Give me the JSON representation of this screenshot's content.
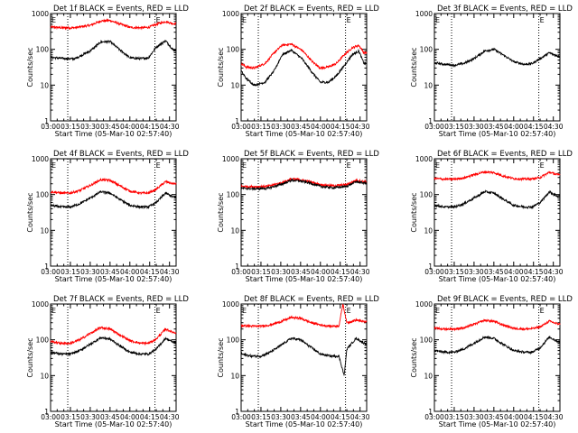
{
  "chart_data": {
    "type": "line",
    "xlabel": "Start Time (05-Mar-10 02:57:40)",
    "ylabel": "Counts/sec",
    "x_tick_labels": [
      "03:00",
      "03:15",
      "03:30",
      "03:45",
      "04:00",
      "04:15",
      "04:30"
    ],
    "x_ticks_min": [
      0,
      15,
      30,
      45,
      60,
      75,
      90
    ],
    "xlim_min": [
      0,
      95
    ],
    "y_tick_labels": [
      "1",
      "10",
      "100",
      "1000"
    ],
    "y_ticks": [
      1,
      10,
      100,
      1000
    ],
    "ylim": [
      1,
      1000
    ],
    "yscale": "log",
    "vlines_min": [
      13,
      79
    ],
    "marker_text": "E",
    "marker_positions_min": [
      0,
      79
    ],
    "series_colors": {
      "events": "#000000",
      "lld": "#ff0000"
    },
    "panels": [
      {
        "title": "Det 1f BLACK = Events, RED = LLD",
        "events": {
          "min": [
            0,
            8,
            18,
            30,
            38,
            45,
            52,
            60,
            68,
            74,
            80,
            87,
            93
          ],
          "cps": [
            60,
            56,
            54,
            90,
            160,
            165,
            100,
            58,
            55,
            58,
            115,
            175,
            95
          ]
        },
        "lld": {
          "min": [
            0,
            8,
            18,
            30,
            38,
            45,
            52,
            60,
            68,
            74,
            80,
            87,
            93
          ],
          "cps": [
            420,
            400,
            400,
            470,
            620,
            640,
            520,
            410,
            400,
            410,
            500,
            600,
            520
          ]
        }
      },
      {
        "title": "Det 2f BLACK = Events, RED = LLD",
        "events": {
          "min": [
            0,
            4,
            10,
            18,
            25,
            31,
            38,
            46,
            54,
            60,
            66,
            72,
            78,
            84,
            89,
            93
          ],
          "cps": [
            25,
            15,
            10,
            12,
            25,
            70,
            95,
            55,
            22,
            12,
            12,
            18,
            35,
            70,
            90,
            40
          ]
        },
        "lld": {
          "min": [
            0,
            4,
            10,
            18,
            25,
            31,
            38,
            46,
            54,
            60,
            66,
            72,
            78,
            84,
            89,
            93
          ],
          "cps": [
            40,
            32,
            30,
            40,
            80,
            130,
            140,
            95,
            45,
            30,
            32,
            40,
            70,
            110,
            130,
            80
          ]
        }
      },
      {
        "title": "Det 3f BLACK = Events, RED = LLD",
        "events": {
          "min": [
            0,
            8,
            15,
            22,
            30,
            38,
            45,
            52,
            60,
            68,
            74,
            80,
            87,
            93
          ],
          "cps": [
            42,
            38,
            36,
            40,
            55,
            90,
            100,
            70,
            45,
            38,
            40,
            55,
            80,
            65
          ]
        }
      },
      {
        "title": "Det 4f BLACK = Events, RED = LLD",
        "events": {
          "min": [
            0,
            8,
            15,
            22,
            30,
            38,
            45,
            52,
            60,
            68,
            74,
            80,
            87,
            93
          ],
          "cps": [
            50,
            45,
            45,
            55,
            80,
            120,
            110,
            75,
            50,
            45,
            45,
            60,
            110,
            85
          ]
        },
        "lld": {
          "min": [
            0,
            8,
            15,
            22,
            30,
            38,
            45,
            52,
            60,
            68,
            74,
            80,
            87,
            93
          ],
          "cps": [
            120,
            110,
            110,
            130,
            180,
            260,
            250,
            180,
            125,
            110,
            110,
            140,
            230,
            200
          ]
        }
      },
      {
        "title": "Det 5f BLACK = Events, RED = LLD",
        "events": {
          "min": [
            0,
            10,
            20,
            30,
            38,
            45,
            52,
            60,
            70,
            80,
            87,
            93
          ],
          "cps": [
            150,
            145,
            150,
            190,
            250,
            240,
            210,
            170,
            155,
            170,
            230,
            210
          ]
        },
        "lld": {
          "min": [
            0,
            10,
            20,
            30,
            38,
            45,
            52,
            60,
            70,
            80,
            87,
            93
          ],
          "cps": [
            170,
            165,
            170,
            210,
            270,
            260,
            230,
            190,
            175,
            190,
            250,
            230
          ]
        }
      },
      {
        "title": "Det 6f BLACK = Events, RED = LLD",
        "events": {
          "min": [
            0,
            8,
            15,
            22,
            30,
            38,
            45,
            52,
            60,
            68,
            74,
            80,
            87,
            93
          ],
          "cps": [
            50,
            45,
            45,
            55,
            80,
            120,
            110,
            75,
            50,
            45,
            45,
            60,
            120,
            90
          ]
        },
        "lld": {
          "min": [
            0,
            8,
            15,
            22,
            30,
            38,
            45,
            52,
            60,
            68,
            74,
            80,
            87,
            93
          ],
          "cps": [
            280,
            270,
            270,
            290,
            360,
            430,
            410,
            330,
            280,
            270,
            275,
            300,
            420,
            360
          ]
        }
      },
      {
        "title": "Det 7f BLACK = Events, RED = LLD",
        "events": {
          "min": [
            0,
            8,
            15,
            22,
            30,
            38,
            45,
            52,
            60,
            68,
            74,
            80,
            87,
            93
          ],
          "cps": [
            45,
            40,
            40,
            50,
            75,
            115,
            105,
            70,
            45,
            40,
            40,
            55,
            110,
            85
          ]
        },
        "lld": {
          "min": [
            0,
            8,
            15,
            22,
            30,
            38,
            45,
            52,
            60,
            68,
            74,
            80,
            87,
            93
          ],
          "cps": [
            90,
            80,
            80,
            100,
            150,
            220,
            200,
            140,
            95,
            80,
            80,
            105,
            200,
            160
          ]
        }
      },
      {
        "title": "Det 8f BLACK = Events, RED = LLD",
        "events": {
          "min": [
            0,
            8,
            15,
            22,
            30,
            38,
            45,
            52,
            60,
            68,
            74,
            78,
            80,
            87,
            93
          ],
          "cps": [
            40,
            35,
            35,
            45,
            70,
            110,
            100,
            65,
            40,
            35,
            35,
            10,
            55,
            110,
            80
          ]
        },
        "lld": {
          "min": [
            0,
            8,
            15,
            22,
            30,
            38,
            45,
            52,
            60,
            68,
            74,
            77,
            80,
            87,
            93
          ],
          "cps": [
            250,
            240,
            240,
            260,
            320,
            420,
            400,
            310,
            260,
            240,
            245,
            1000,
            300,
            360,
            320
          ]
        }
      },
      {
        "title": "Det 9f BLACK = Events, RED = LLD",
        "events": {
          "min": [
            0,
            8,
            15,
            22,
            30,
            38,
            45,
            52,
            60,
            68,
            74,
            80,
            87,
            93
          ],
          "cps": [
            50,
            45,
            45,
            55,
            80,
            120,
            110,
            75,
            50,
            45,
            45,
            60,
            120,
            90
          ]
        },
        "lld": {
          "min": [
            0,
            8,
            15,
            22,
            30,
            38,
            45,
            52,
            60,
            68,
            74,
            80,
            87,
            93
          ],
          "cps": [
            210,
            200,
            200,
            215,
            270,
            350,
            330,
            260,
            210,
            200,
            205,
            230,
            330,
            280
          ]
        }
      }
    ]
  }
}
